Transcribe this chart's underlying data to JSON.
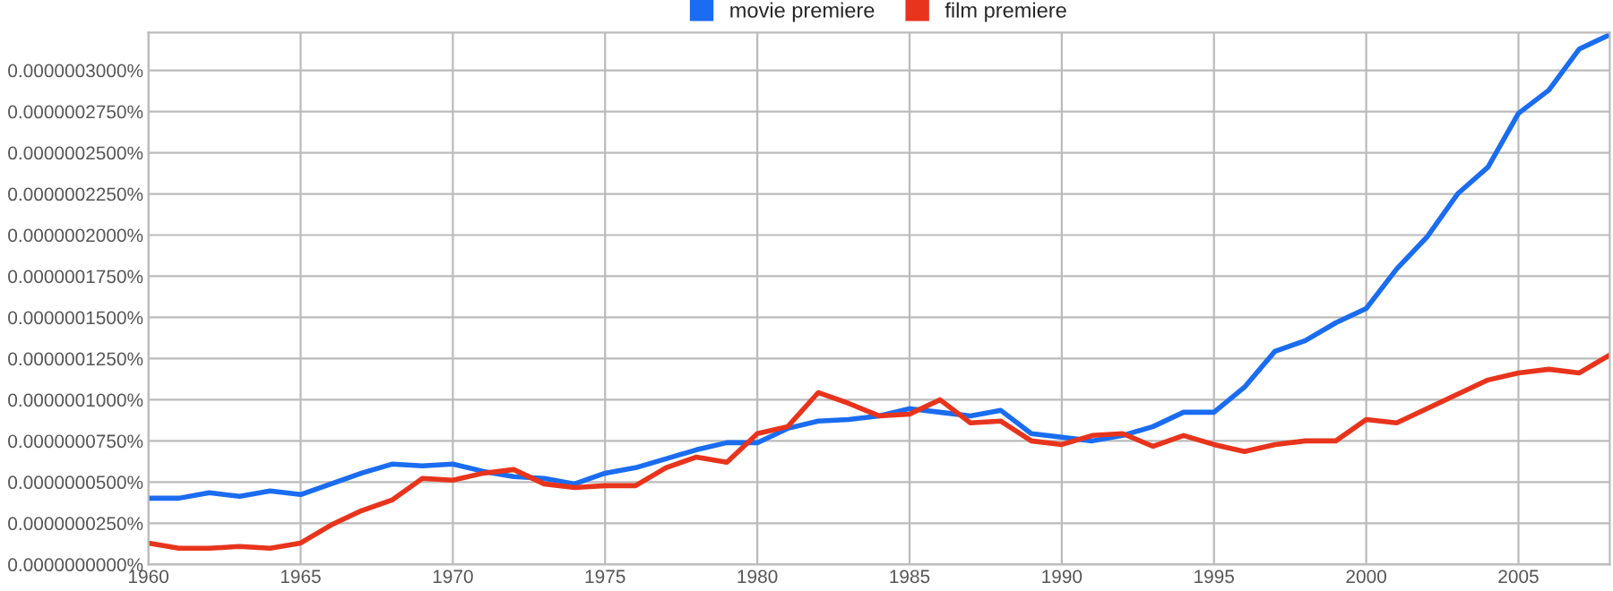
{
  "chart_data": {
    "type": "line",
    "x": [
      1960,
      1961,
      1962,
      1963,
      1964,
      1965,
      1966,
      1967,
      1968,
      1969,
      1970,
      1971,
      1972,
      1973,
      1974,
      1975,
      1976,
      1977,
      1978,
      1979,
      1980,
      1981,
      1982,
      1983,
      1984,
      1985,
      1986,
      1987,
      1988,
      1989,
      1990,
      1991,
      1992,
      1993,
      1994,
      1995,
      1996,
      1997,
      1998,
      1999,
      2000,
      2001,
      2002,
      2003,
      2004,
      2005,
      2006,
      2007,
      2008
    ],
    "series": [
      {
        "name": "movie premiere",
        "color": "#1a6cf0",
        "values": [
          4.02e-08,
          4.02e-08,
          4.35e-08,
          4.13e-08,
          4.46e-08,
          4.24e-08,
          4.89e-08,
          5.54e-08,
          6.09e-08,
          5.98e-08,
          6.09e-08,
          5.65e-08,
          5.33e-08,
          5.22e-08,
          4.89e-08,
          5.54e-08,
          5.87e-08,
          6.41e-08,
          6.96e-08,
          7.39e-08,
          7.39e-08,
          8.26e-08,
          8.7e-08,
          8.8e-08,
          9.02e-08,
          9.46e-08,
          9.24e-08,
          9.02e-08,
          9.35e-08,
          7.94e-08,
          7.72e-08,
          7.5e-08,
          7.83e-08,
          8.37e-08,
          9.24e-08,
          9.24e-08,
          1.076e-07,
          1.294e-07,
          1.359e-07,
          1.467e-07,
          1.554e-07,
          1.794e-07,
          1.989e-07,
          2.25e-07,
          2.413e-07,
          2.739e-07,
          2.88e-07,
          3.13e-07,
          3.217e-07
        ]
      },
      {
        "name": "film premiere",
        "color": "#e8341c",
        "values": [
          1.3e-08,
          9.8e-09,
          9.8e-09,
          1.09e-08,
          9.8e-09,
          1.3e-08,
          2.39e-08,
          3.26e-08,
          3.91e-08,
          5.22e-08,
          5.11e-08,
          5.54e-08,
          5.76e-08,
          4.89e-08,
          4.67e-08,
          4.78e-08,
          4.78e-08,
          5.87e-08,
          6.52e-08,
          6.2e-08,
          7.94e-08,
          8.37e-08,
          1.043e-07,
          9.78e-08,
          9.02e-08,
          9.13e-08,
          1e-07,
          8.59e-08,
          8.7e-08,
          7.5e-08,
          7.28e-08,
          7.83e-08,
          7.94e-08,
          7.17e-08,
          7.83e-08,
          7.28e-08,
          6.85e-08,
          7.28e-08,
          7.5e-08,
          7.5e-08,
          8.8e-08,
          8.59e-08,
          9.46e-08,
          1.033e-07,
          1.12e-07,
          1.163e-07,
          1.185e-07,
          1.163e-07,
          1.272e-07
        ]
      }
    ],
    "xlim": [
      1960,
      2008
    ],
    "xticks": [
      1960,
      1965,
      1970,
      1975,
      1980,
      1985,
      1990,
      1995,
      2000,
      2005
    ],
    "ylim": [
      0,
      3.23e-07
    ],
    "yticks": [
      {
        "value": 0,
        "label": "0.0000000000%"
      },
      {
        "value": 2.5e-08,
        "label": "0.0000000250%"
      },
      {
        "value": 5e-08,
        "label": "0.0000000500%"
      },
      {
        "value": 7.5e-08,
        "label": "0.0000000750%"
      },
      {
        "value": 1e-07,
        "label": "0.0000001000%"
      },
      {
        "value": 1.25e-07,
        "label": "0.0000001250%"
      },
      {
        "value": 1.5e-07,
        "label": "0.0000001500%"
      },
      {
        "value": 1.75e-07,
        "label": "0.0000001750%"
      },
      {
        "value": 2e-07,
        "label": "0.0000002000%"
      },
      {
        "value": 2.25e-07,
        "label": "0.0000002250%"
      },
      {
        "value": 2.5e-07,
        "label": "0.0000002500%"
      },
      {
        "value": 2.75e-07,
        "label": "0.0000002750%"
      },
      {
        "value": 3e-07,
        "label": "0.0000003000%"
      }
    ],
    "grid": true,
    "legend": "top",
    "marker": "none",
    "line_style": "solid"
  }
}
